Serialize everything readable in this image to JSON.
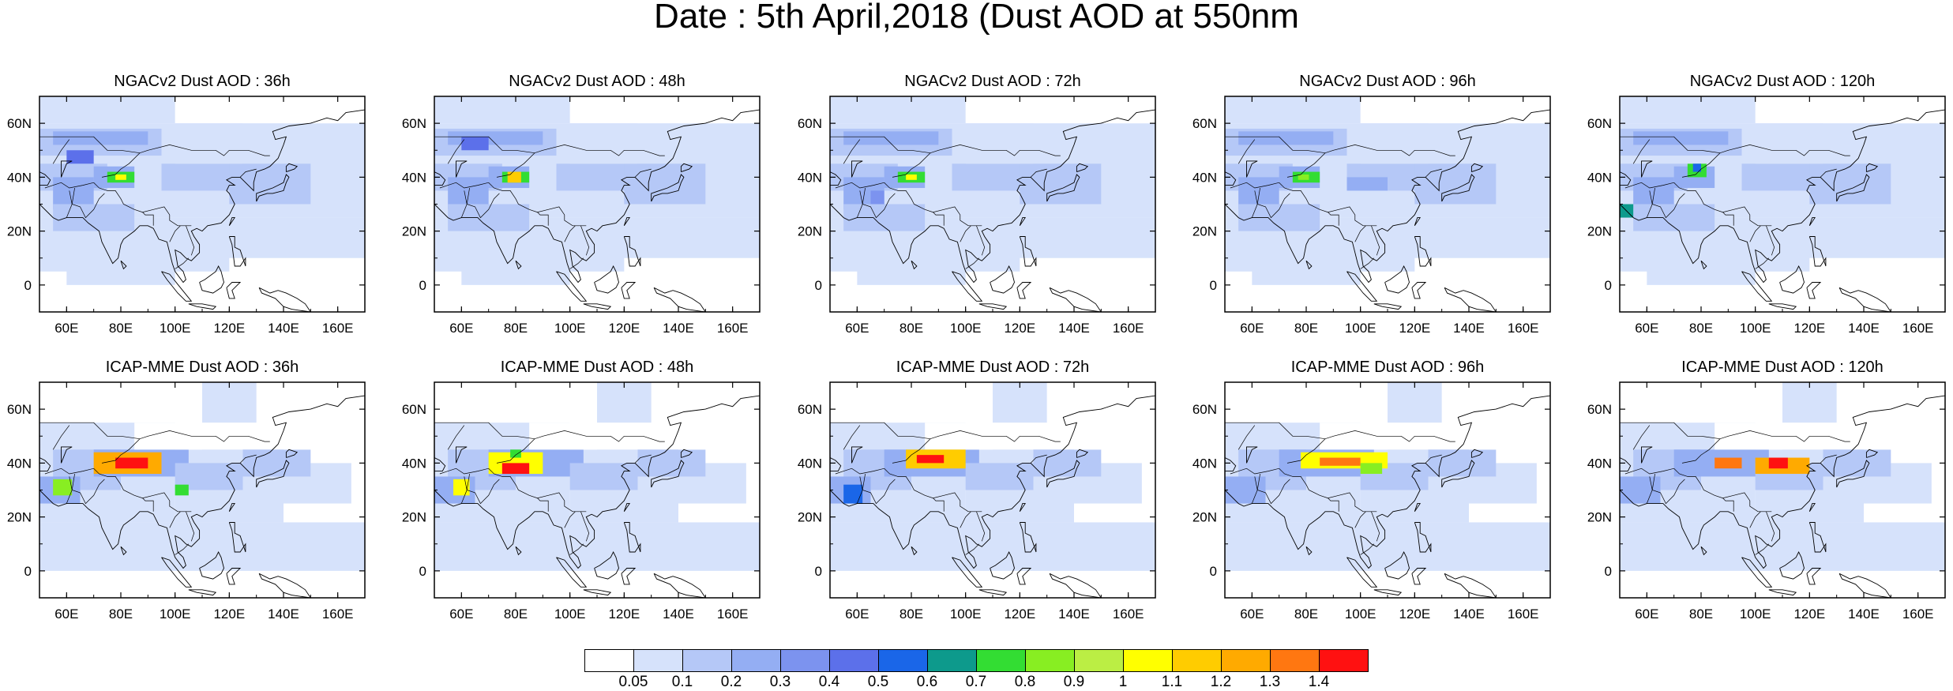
{
  "title": "Date : 5th April,2018 (Dust AOD at 550nm",
  "lat_ticks": [
    "60N",
    "40N",
    "20N",
    "0"
  ],
  "lon_ticks": [
    "60E",
    "80E",
    "100E",
    "120E",
    "140E",
    "160E"
  ],
  "panels": [
    {
      "title": "NGACv2 Dust AOD : 36h",
      "model": "NGACv2",
      "lead": "36h"
    },
    {
      "title": "NGACv2 Dust AOD : 48h",
      "model": "NGACv2",
      "lead": "48h"
    },
    {
      "title": "NGACv2 Dust AOD : 72h",
      "model": "NGACv2",
      "lead": "72h"
    },
    {
      "title": "NGACv2 Dust AOD : 96h",
      "model": "NGACv2",
      "lead": "96h"
    },
    {
      "title": "NGACv2 Dust AOD : 120h",
      "model": "NGACv2",
      "lead": "120h"
    },
    {
      "title": "ICAP-MME Dust AOD : 36h",
      "model": "ICAP-MME",
      "lead": "36h"
    },
    {
      "title": "ICAP-MME Dust AOD : 48h",
      "model": "ICAP-MME",
      "lead": "48h"
    },
    {
      "title": "ICAP-MME Dust AOD : 72h",
      "model": "ICAP-MME",
      "lead": "72h"
    },
    {
      "title": "ICAP-MME Dust AOD : 96h",
      "model": "ICAP-MME",
      "lead": "96h"
    },
    {
      "title": "ICAP-MME Dust AOD : 120h",
      "model": "ICAP-MME",
      "lead": "120h"
    }
  ],
  "colorbar": {
    "labels": [
      "0.05",
      "0.1",
      "0.2",
      "0.3",
      "0.4",
      "0.5",
      "0.6",
      "0.7",
      "0.8",
      "0.9",
      "1",
      "1.1",
      "1.2",
      "1.3",
      "1.4"
    ],
    "colors": [
      "#ffffff",
      "#d6e2fb",
      "#b5c8f7",
      "#94aef3",
      "#7c93ef",
      "#5c70ea",
      "#1a66e8",
      "#0d9a8c",
      "#33dd33",
      "#88ee22",
      "#bbee44",
      "#ffff00",
      "#ffcc00",
      "#ffaa00",
      "#ff7711",
      "#ff1111"
    ]
  },
  "colors": {
    "ocean": "#ffffff",
    "low_dust": "#c7d7f9",
    "coast": "#000000"
  }
}
